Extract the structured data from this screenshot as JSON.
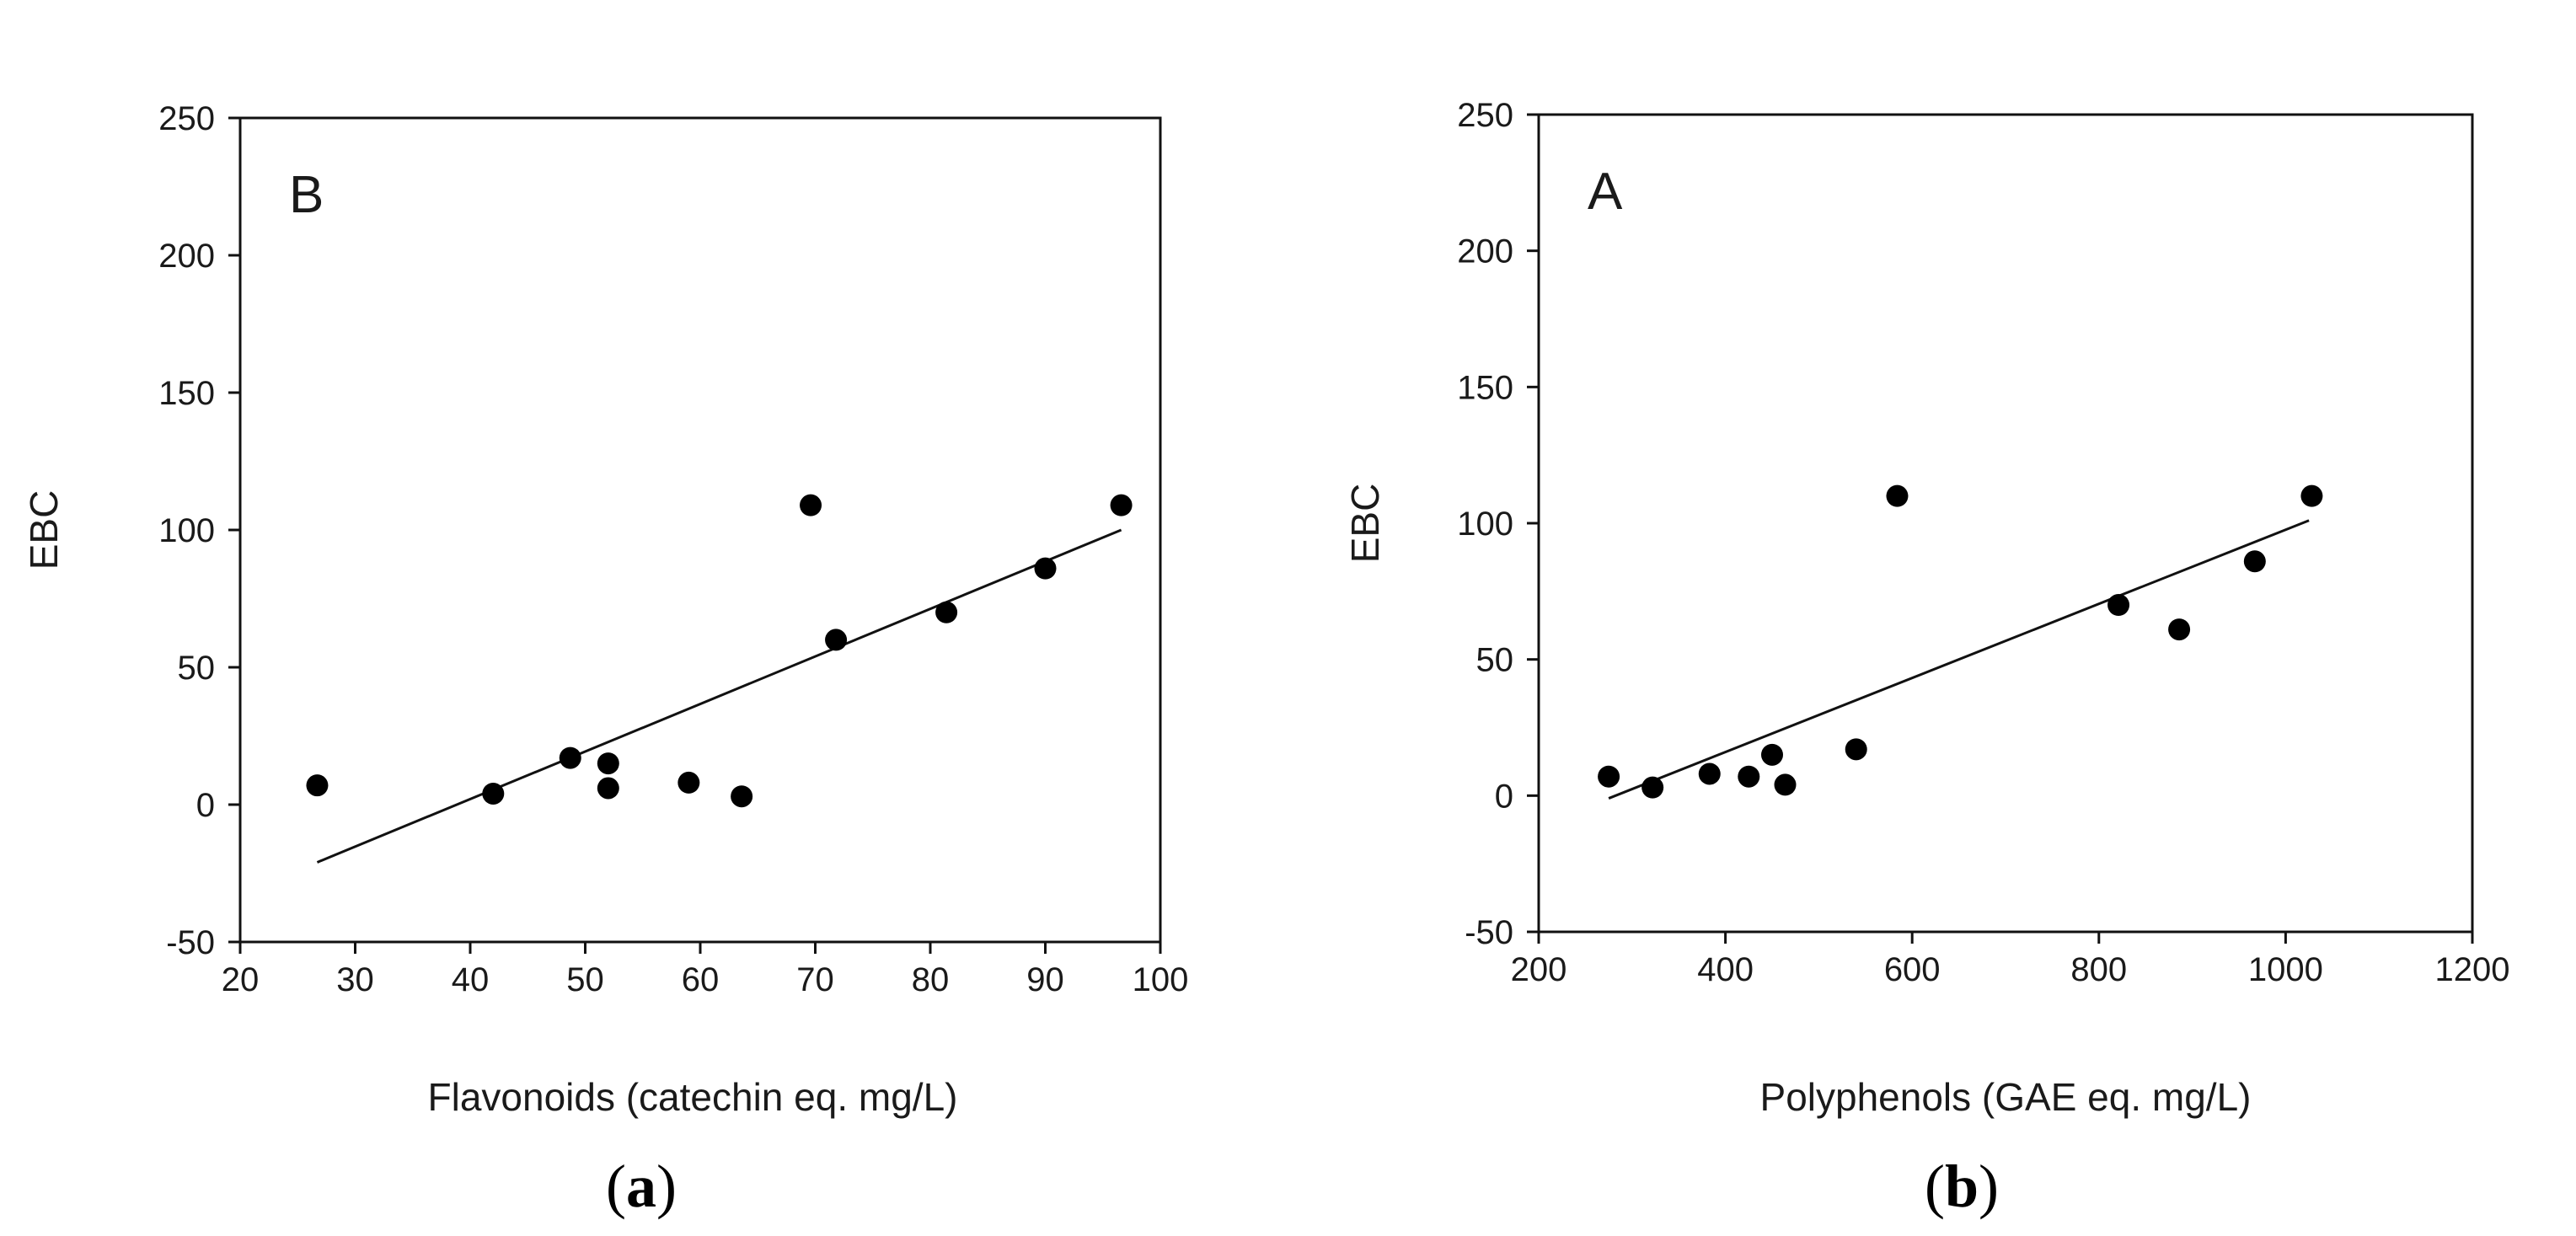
{
  "chart_data": [
    {
      "type": "scatter",
      "panel_letter": "B",
      "caption": "(a)",
      "caption_letter": "a",
      "xlabel": "Flavonoids (catechin eq. mg/L)",
      "ylabel": "EBC",
      "xlim": [
        20,
        100
      ],
      "ylim": [
        -50,
        250
      ],
      "xticks": [
        20,
        30,
        40,
        50,
        60,
        70,
        80,
        90,
        100
      ],
      "yticks": [
        -50,
        0,
        50,
        100,
        150,
        200,
        250
      ],
      "grid": false,
      "points": [
        {
          "x": 26.7,
          "y": 7
        },
        {
          "x": 42.0,
          "y": 4
        },
        {
          "x": 48.7,
          "y": 17
        },
        {
          "x": 52.0,
          "y": 15
        },
        {
          "x": 52.0,
          "y": 6
        },
        {
          "x": 59.0,
          "y": 8
        },
        {
          "x": 63.6,
          "y": 3
        },
        {
          "x": 69.6,
          "y": 109
        },
        {
          "x": 71.8,
          "y": 60
        },
        {
          "x": 81.4,
          "y": 70
        },
        {
          "x": 90.0,
          "y": 86
        },
        {
          "x": 96.6,
          "y": 109
        }
      ],
      "trendline": {
        "x": [
          26.7,
          96.6
        ],
        "y": [
          -21,
          100
        ]
      }
    },
    {
      "type": "scatter",
      "panel_letter": "A",
      "caption": "(b)",
      "caption_letter": "b",
      "xlabel": "Polyphenols (GAE eq. mg/L)",
      "ylabel": "EBC",
      "xlim": [
        200,
        1200
      ],
      "ylim": [
        -50,
        250
      ],
      "xticks": [
        200,
        400,
        600,
        800,
        1000,
        1200
      ],
      "yticks": [
        -50,
        0,
        50,
        100,
        150,
        200,
        250
      ],
      "grid": false,
      "points": [
        {
          "x": 275,
          "y": 7
        },
        {
          "x": 322,
          "y": 3
        },
        {
          "x": 383,
          "y": 8
        },
        {
          "x": 425,
          "y": 7
        },
        {
          "x": 450,
          "y": 15
        },
        {
          "x": 464,
          "y": 4
        },
        {
          "x": 540,
          "y": 17
        },
        {
          "x": 584,
          "y": 110
        },
        {
          "x": 821,
          "y": 70
        },
        {
          "x": 886,
          "y": 61
        },
        {
          "x": 967,
          "y": 86
        },
        {
          "x": 1028,
          "y": 110
        }
      ],
      "trendline": {
        "x": [
          275,
          1025
        ],
        "y": [
          -1,
          101
        ]
      }
    }
  ]
}
